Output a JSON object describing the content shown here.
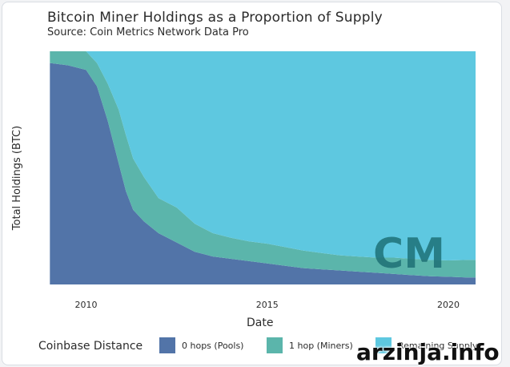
{
  "header": {
    "title": "Bitcoin Miner Holdings as a Proportion of Supply",
    "subtitle": "Source: Coin Metrics Network Data Pro"
  },
  "chart_data": {
    "type": "area",
    "stacked": true,
    "normalized": true,
    "title": "Bitcoin Miner Holdings as a Proportion of Supply",
    "subtitle": "Source: Coin Metrics Network Data Pro",
    "xlabel": "Date",
    "ylabel": "Total Holdings (BTC)",
    "xlim": [
      2008.95,
      2020.75
    ],
    "ylim": [
      0,
      1
    ],
    "x_ticks": [
      2010,
      2015,
      2020
    ],
    "x_tick_labels": [
      "2010",
      "2015",
      "2020"
    ],
    "grid": false,
    "legend": {
      "title": "Coinbase Distance",
      "position": "bottom"
    },
    "x": [
      2009.0,
      2009.5,
      2010.0,
      2010.3,
      2010.6,
      2010.9,
      2011.1,
      2011.3,
      2011.6,
      2012.0,
      2012.5,
      2013.0,
      2013.5,
      2014.0,
      2014.5,
      2015.0,
      2015.5,
      2016.0,
      2016.5,
      2017.0,
      2017.5,
      2018.0,
      2018.5,
      2019.0,
      2019.5,
      2020.0,
      2020.5,
      2020.75
    ],
    "series": [
      {
        "name": "0 hops (Pools)",
        "color": "#5274a8",
        "values": [
          0.95,
          0.94,
          0.92,
          0.85,
          0.7,
          0.52,
          0.4,
          0.32,
          0.27,
          0.22,
          0.18,
          0.14,
          0.12,
          0.11,
          0.1,
          0.09,
          0.08,
          0.07,
          0.065,
          0.06,
          0.055,
          0.05,
          0.045,
          0.04,
          0.035,
          0.033,
          0.03,
          0.03
        ]
      },
      {
        "name": "1 hop (Miners)",
        "color": "#5bb5ab",
        "values": [
          0.05,
          0.06,
          0.08,
          0.1,
          0.16,
          0.23,
          0.24,
          0.22,
          0.19,
          0.15,
          0.15,
          0.12,
          0.1,
          0.09,
          0.085,
          0.085,
          0.08,
          0.075,
          0.07,
          0.065,
          0.065,
          0.065,
          0.07,
          0.07,
          0.07,
          0.07,
          0.075,
          0.075
        ]
      },
      {
        "name": "Remaining Supply",
        "color": "#5ec8e0",
        "values": [
          0.0,
          0.0,
          0.0,
          0.05,
          0.14,
          0.25,
          0.36,
          0.46,
          0.54,
          0.63,
          0.67,
          0.74,
          0.78,
          0.8,
          0.815,
          0.825,
          0.84,
          0.855,
          0.865,
          0.875,
          0.88,
          0.885,
          0.885,
          0.89,
          0.895,
          0.897,
          0.895,
          0.895
        ]
      }
    ],
    "logo_text": "CM"
  },
  "watermark": "arzinja.info",
  "colors": {
    "pools": "#5274a8",
    "miners": "#5bb5ab",
    "remaining": "#5ec8e0"
  }
}
